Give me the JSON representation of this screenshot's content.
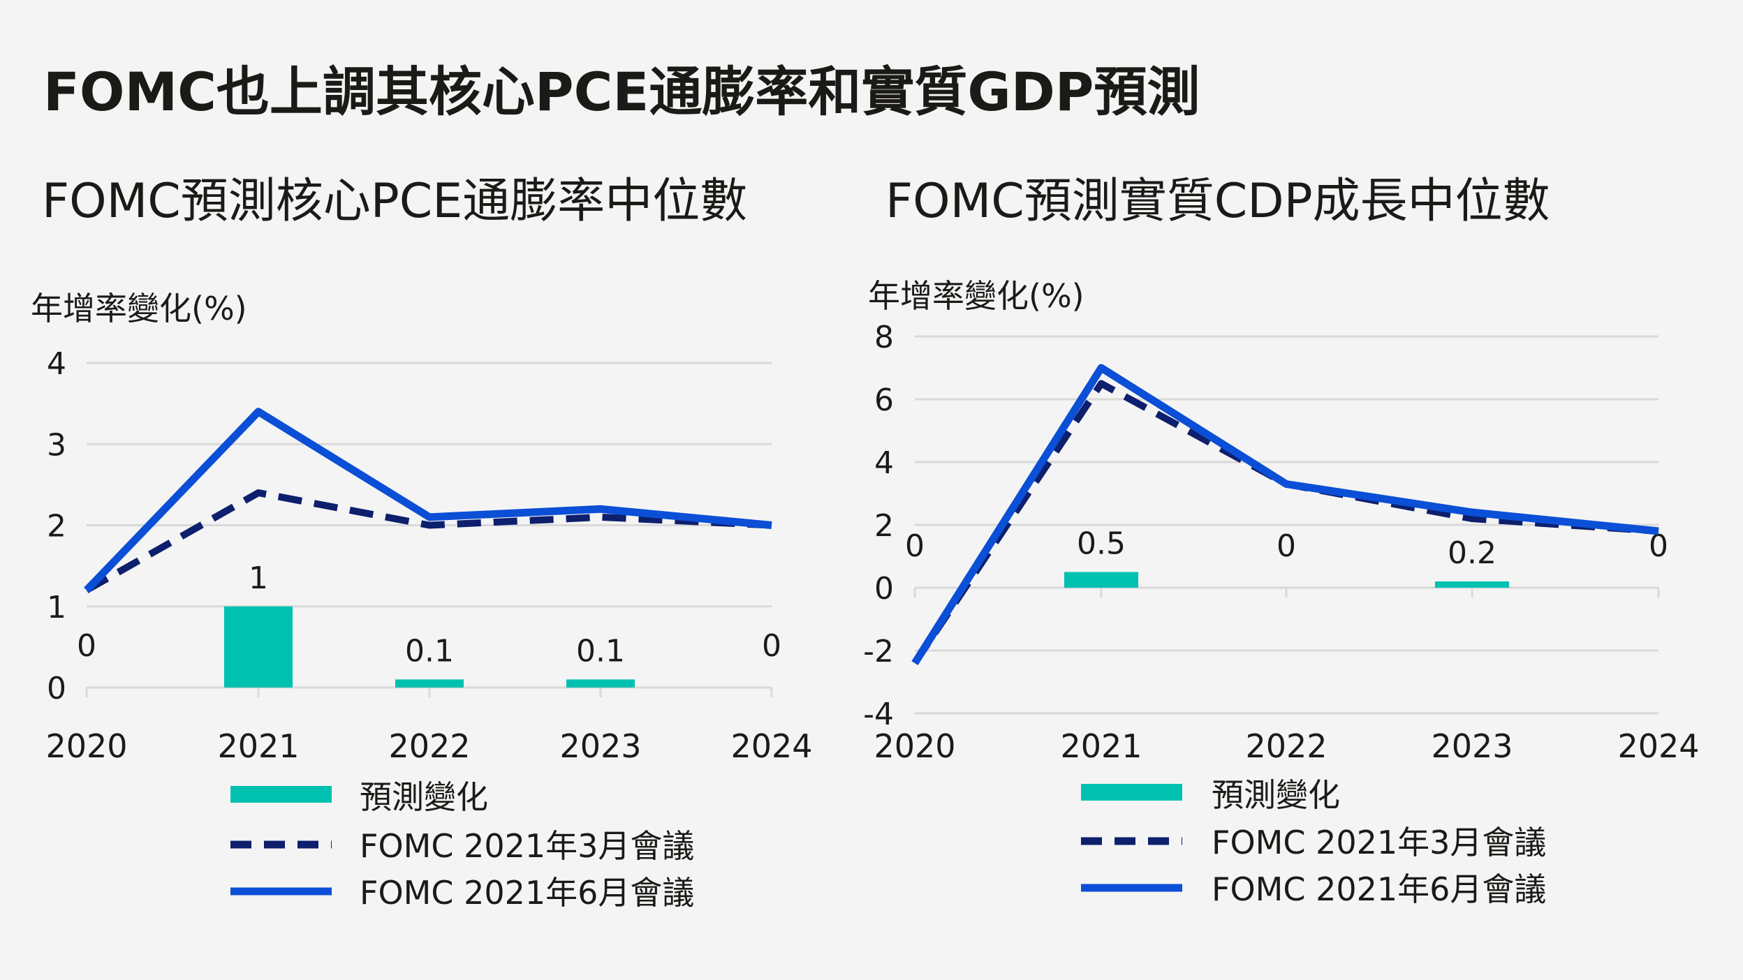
{
  "title": "FOMC也上調其核心PCE通膨率和實質GDP預測",
  "colors": {
    "bar": "#00c1b0",
    "march": "#0d1f6d",
    "june": "#0b4fd6",
    "grid": "#d9d9d9",
    "text": "#1c1a17"
  },
  "chart_data": [
    {
      "type": "bar+line",
      "title": "FOMC預測核心PCE通膨率中位數",
      "ylabel": "年增率變化(%)",
      "ylim": [
        0,
        4
      ],
      "yticks": [
        "0",
        "1",
        "2",
        "3",
        "4"
      ],
      "categories": [
        "2020",
        "2021",
        "2022",
        "2023",
        "2024"
      ],
      "bar_series": {
        "name": "預測變化",
        "values": [
          0,
          1,
          0.1,
          0.1,
          0
        ],
        "labels": [
          "0",
          "1",
          "0.1",
          "0.1",
          "0"
        ]
      },
      "series": [
        {
          "name": "FOMC 2021年3月會議",
          "style": "dashed",
          "values": [
            1.2,
            2.4,
            2.0,
            2.1,
            2.0
          ]
        },
        {
          "name": "FOMC 2021年6月會議",
          "style": "solid",
          "values": [
            1.2,
            3.4,
            2.1,
            2.2,
            2.0
          ]
        }
      ],
      "legend": [
        "預測變化",
        "FOMC 2021年3月會議",
        "FOMC 2021年6月會議"
      ]
    },
    {
      "type": "bar+line",
      "title": "FOMC預測實質CDP成長中位數",
      "ylabel": "年增率變化(%)",
      "ylim": [
        -4,
        8
      ],
      "yticks": [
        "-4",
        "-2",
        "0",
        "2",
        "4",
        "6",
        "8"
      ],
      "categories": [
        "2020",
        "2021",
        "2022",
        "2023",
        "2024"
      ],
      "bar_series": {
        "name": "預測變化",
        "values": [
          0,
          0.5,
          0,
          0.2,
          0
        ],
        "labels": [
          "0",
          "0.5",
          "0",
          "0.2",
          "0"
        ]
      },
      "series": [
        {
          "name": "FOMC 2021年3月會議",
          "style": "dashed",
          "values": [
            -2.4,
            6.5,
            3.3,
            2.2,
            1.8
          ]
        },
        {
          "name": "FOMC 2021年6月會議",
          "style": "solid",
          "values": [
            -2.4,
            7.0,
            3.3,
            2.4,
            1.8
          ]
        }
      ],
      "legend": [
        "預測變化",
        "FOMC 2021年3月會議",
        "FOMC 2021年6月會議"
      ]
    }
  ]
}
